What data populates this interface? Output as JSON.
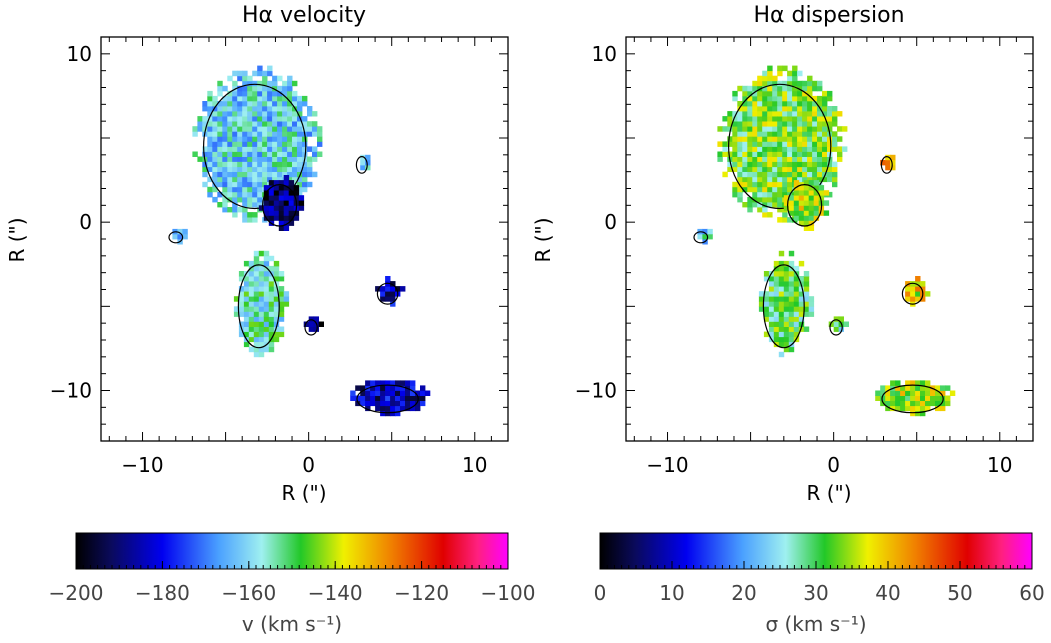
{
  "chart_data": [
    {
      "type": "heatmap",
      "title": "Hα velocity",
      "xlabel": "R (\")",
      "ylabel": "R (\")",
      "xlim": [
        -12.5,
        12
      ],
      "ylim": [
        -13,
        11
      ],
      "xticks": [
        {
          "v": -10,
          "t": "−10"
        },
        {
          "v": 0,
          "t": "0"
        },
        {
          "v": 10,
          "t": "10"
        }
      ],
      "yticks": [
        {
          "v": 10,
          "t": "10"
        },
        {
          "v": 0,
          "t": "0"
        },
        {
          "v": -10,
          "t": "−10"
        }
      ],
      "colorbar": {
        "label": "v (km s⁻¹)",
        "range": [
          -200,
          -100
        ],
        "ticks": [
          {
            "v": -200,
            "t": "−200"
          },
          {
            "v": -180,
            "t": "−180"
          },
          {
            "v": -160,
            "t": "−160"
          },
          {
            "v": -140,
            "t": "−140"
          },
          {
            "v": -120,
            "t": "−120"
          },
          {
            "v": -100,
            "t": "−100"
          }
        ]
      },
      "regions": [
        {
          "name": "main-blob",
          "x": [
            -7,
            0.5
          ],
          "y": [
            0,
            9
          ],
          "value": -160
        },
        {
          "name": "central-knot",
          "x": [
            -3,
            -0.5
          ],
          "y": [
            -0.5,
            2.5
          ],
          "value": -190
        },
        {
          "name": "left-knot",
          "x": [
            -8.5,
            -7.5
          ],
          "y": [
            -1.3,
            -0.5
          ],
          "value": -160
        },
        {
          "name": "small-right",
          "x": [
            2.8,
            3.6
          ],
          "y": [
            2.8,
            4
          ],
          "value": -165
        },
        {
          "name": "lower-left-blob",
          "x": [
            -4.5,
            -1.5
          ],
          "y": [
            -8,
            -2
          ],
          "value": -155
        },
        {
          "name": "lower-center-knot",
          "x": [
            -0.3,
            0.6
          ],
          "y": [
            -6.8,
            -5.7
          ],
          "value": -195
        },
        {
          "name": "right-group",
          "x": [
            4,
            5.5
          ],
          "y": [
            -5,
            -3.5
          ],
          "value": -185
        },
        {
          "name": "bottom-right",
          "x": [
            2.5,
            7
          ],
          "y": [
            -11.5,
            -9.5
          ],
          "value": -185
        }
      ]
    },
    {
      "type": "heatmap",
      "title": "Hα dispersion",
      "xlabel": "R (\")",
      "ylabel": "R (\")",
      "xlim": [
        -12.5,
        12
      ],
      "ylim": [
        -13,
        11
      ],
      "xticks": [
        {
          "v": -10,
          "t": "−10"
        },
        {
          "v": 0,
          "t": "0"
        },
        {
          "v": 10,
          "t": "10"
        }
      ],
      "yticks": [
        {
          "v": 10,
          "t": "10"
        },
        {
          "v": 0,
          "t": "0"
        },
        {
          "v": -10,
          "t": "−10"
        }
      ],
      "colorbar": {
        "label": "σ (km s⁻¹)",
        "range": [
          0,
          60
        ],
        "ticks": [
          {
            "v": 0,
            "t": "0"
          },
          {
            "v": 10,
            "t": "10"
          },
          {
            "v": 20,
            "t": "20"
          },
          {
            "v": 30,
            "t": "30"
          },
          {
            "v": 40,
            "t": "40"
          },
          {
            "v": 50,
            "t": "50"
          },
          {
            "v": 60,
            "t": "60"
          }
        ]
      },
      "regions": [
        {
          "name": "main-blob",
          "x": [
            -7,
            0.5
          ],
          "y": [
            0,
            9
          ],
          "value": 32
        },
        {
          "name": "central-knot",
          "x": [
            -3,
            -0.5
          ],
          "y": [
            -0.5,
            2.5
          ],
          "value": 35
        },
        {
          "name": "left-knot",
          "x": [
            -8.5,
            -7.5
          ],
          "y": [
            -1.3,
            -0.5
          ],
          "value": 25
        },
        {
          "name": "small-right",
          "x": [
            2.8,
            3.6
          ],
          "y": [
            2.8,
            4
          ],
          "value": 40
        },
        {
          "name": "lower-left-blob",
          "x": [
            -4.5,
            -1.5
          ],
          "y": [
            -8,
            -2
          ],
          "value": 30
        },
        {
          "name": "lower-center-knot",
          "x": [
            -0.3,
            0.6
          ],
          "y": [
            -6.8,
            -5.7
          ],
          "value": 28
        },
        {
          "name": "right-group",
          "x": [
            4,
            5.5
          ],
          "y": [
            -5,
            -3.5
          ],
          "value": 38
        },
        {
          "name": "bottom-right",
          "x": [
            2.5,
            7
          ],
          "y": [
            -11.5,
            -9.5
          ],
          "value": 35
        }
      ]
    }
  ]
}
